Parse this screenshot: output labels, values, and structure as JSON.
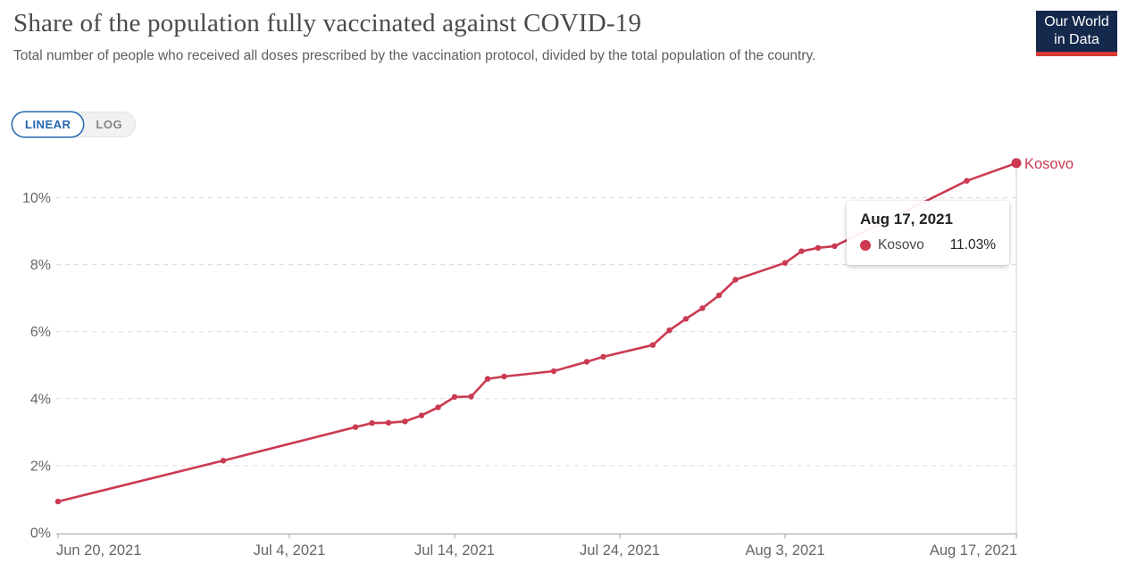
{
  "header": {
    "title": "Share of the population fully vaccinated against COVID-19",
    "subtitle": "Total number of people who received all doses prescribed by the vaccination protocol, divided by the total population of the country."
  },
  "logo": {
    "line1": "Our World",
    "line2": "in Data",
    "bg_color": "#14294b",
    "bar_color": "#d73a34"
  },
  "toolbar": {
    "linear_label": "LINEAR",
    "log_label": "LOG",
    "active": "LINEAR",
    "active_color": "#2468b0"
  },
  "tooltip": {
    "date": "Aug 17, 2021",
    "series": "Kosovo",
    "value": "11.03%"
  },
  "chart_data": {
    "type": "line",
    "title": "Share of the population fully vaccinated against COVID-19",
    "xlabel": "",
    "ylabel": "",
    "ylim": [
      0,
      11.5
    ],
    "yticks": [
      0,
      2,
      4,
      6,
      8,
      10
    ],
    "ytick_suffix": "%",
    "grid": "dashed-horizontal",
    "x_ticks": [
      {
        "label": "Jun 20, 2021",
        "day": 0,
        "anchor": "start"
      },
      {
        "label": "Jul 4, 2021",
        "day": 14,
        "anchor": "middle"
      },
      {
        "label": "Jul 14, 2021",
        "day": 24,
        "anchor": "middle"
      },
      {
        "label": "Jul 24, 2021",
        "day": 34,
        "anchor": "middle"
      },
      {
        "label": "Aug 3, 2021",
        "day": 44,
        "anchor": "middle"
      },
      {
        "label": "Aug 17, 2021",
        "day": 58,
        "anchor": "end"
      }
    ],
    "series": [
      {
        "name": "Kosovo",
        "color": "#cb3a51",
        "dates": [
          "Jun 20, 2021",
          "Jun 30, 2021",
          "Jul 8, 2021",
          "Jul 9, 2021",
          "Jul 10, 2021",
          "Jul 11, 2021",
          "Jul 12, 2021",
          "Jul 13, 2021",
          "Jul 14, 2021",
          "Jul 15, 2021",
          "Jul 16, 2021",
          "Jul 17, 2021",
          "Jul 20, 2021",
          "Jul 22, 2021",
          "Jul 23, 2021",
          "Jul 26, 2021",
          "Jul 27, 2021",
          "Jul 28, 2021",
          "Jul 29, 2021",
          "Jul 30, 2021",
          "Jul 31, 2021",
          "Aug 3, 2021",
          "Aug 4, 2021",
          "Aug 5, 2021",
          "Aug 6, 2021",
          "Aug 14, 2021",
          "Aug 17, 2021"
        ],
        "days": [
          0,
          10,
          18,
          19,
          20,
          21,
          22,
          23,
          24,
          25,
          26,
          27,
          30,
          32,
          33,
          36,
          37,
          38,
          39,
          40,
          41,
          44,
          45,
          46,
          47,
          55,
          58
        ],
        "values": [
          0.93,
          2.15,
          3.15,
          3.27,
          3.28,
          3.32,
          3.5,
          3.74,
          4.05,
          4.06,
          4.59,
          4.66,
          4.82,
          5.1,
          5.25,
          5.6,
          6.04,
          6.38,
          6.7,
          7.08,
          7.55,
          8.05,
          8.4,
          8.5,
          8.55,
          10.5,
          11.03
        ]
      }
    ],
    "highlight": {
      "day": 58,
      "value": 11.03,
      "series": "Kosovo"
    },
    "legend_position": "end-of-line-label"
  }
}
